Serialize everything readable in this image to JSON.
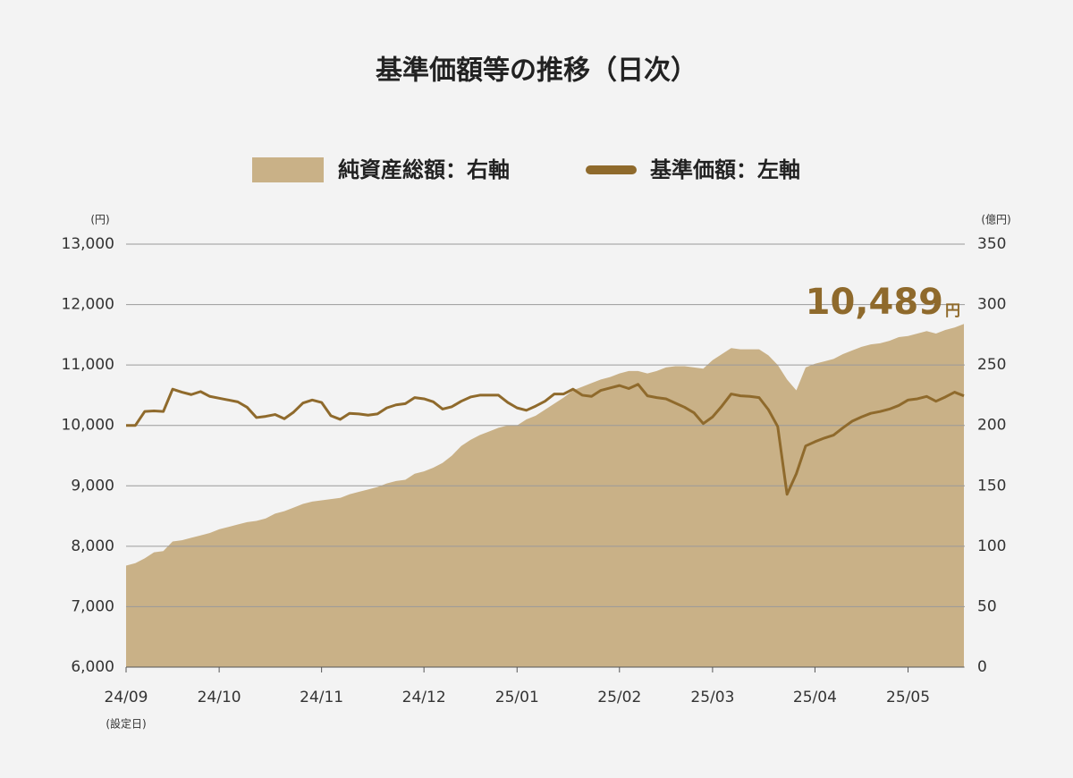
{
  "chart_data": {
    "type": "combo",
    "title": "基準価額等の推移（日次）",
    "y_unit": "(円)",
    "y2_unit": "(億円)",
    "x_annotation": "(設定日)",
    "categories": [
      "24/09",
      null,
      null,
      null,
      null,
      null,
      null,
      null,
      null,
      null,
      "24/10",
      null,
      null,
      null,
      null,
      null,
      null,
      null,
      null,
      null,
      null,
      "24/11",
      null,
      null,
      null,
      null,
      null,
      null,
      null,
      null,
      null,
      null,
      "24/12",
      null,
      null,
      null,
      null,
      null,
      null,
      null,
      null,
      null,
      "25/01",
      null,
      null,
      null,
      null,
      null,
      null,
      null,
      null,
      null,
      null,
      "25/02",
      null,
      null,
      null,
      null,
      null,
      null,
      null,
      null,
      null,
      "25/03",
      null,
      null,
      null,
      null,
      null,
      null,
      null,
      null,
      null,
      null,
      "25/04",
      null,
      null,
      null,
      null,
      null,
      null,
      null,
      null,
      null,
      "25/05",
      null,
      null,
      null,
      null,
      null,
      null
    ],
    "series": [
      {
        "name": "純資産総額：右軸",
        "type": "area",
        "axis": "y2",
        "color": "#c9b187",
        "values": [
          84,
          86,
          90,
          95,
          96,
          104,
          105,
          107,
          109,
          111,
          114,
          116,
          118,
          120,
          121,
          123,
          127,
          129,
          132,
          135,
          137,
          138,
          139,
          140,
          143,
          145,
          147,
          149,
          152,
          154,
          155,
          160,
          162,
          165,
          169,
          175,
          183,
          188,
          192,
          195,
          198,
          200,
          200,
          205,
          208,
          213,
          218,
          223,
          229,
          232,
          235,
          238,
          240,
          243,
          245,
          245,
          243,
          245,
          248,
          249,
          249,
          248,
          247,
          254,
          259,
          264,
          263,
          263,
          263,
          258,
          250,
          238,
          229,
          248,
          251,
          253,
          255,
          259,
          262,
          265,
          267,
          268,
          270,
          273,
          274,
          276,
          278,
          276,
          279,
          281,
          284
        ]
      },
      {
        "name": "基準価額：左軸",
        "type": "line",
        "color": "#8f6a2c",
        "values": [
          10000,
          10000,
          10230,
          10240,
          10230,
          10600,
          10550,
          10510,
          10560,
          10480,
          10450,
          10420,
          10390,
          10300,
          10130,
          10150,
          10180,
          10110,
          10220,
          10370,
          10420,
          10380,
          10160,
          10100,
          10200,
          10190,
          10170,
          10190,
          10290,
          10340,
          10360,
          10460,
          10440,
          10390,
          10270,
          10310,
          10400,
          10470,
          10500,
          10500,
          10500,
          10380,
          10290,
          10250,
          10320,
          10400,
          10520,
          10520,
          10600,
          10500,
          10480,
          10580,
          10620,
          10660,
          10610,
          10680,
          10490,
          10460,
          10440,
          10370,
          10300,
          10210,
          10030,
          10140,
          10320,
          10520,
          10490,
          10480,
          10460,
          10260,
          9980,
          8860,
          9200,
          9660,
          9730,
          9790,
          9840,
          9960,
          10070,
          10140,
          10200,
          10230,
          10270,
          10330,
          10420,
          10440,
          10480,
          10400,
          10470,
          10550,
          10489
        ],
        "value_labels": [
          null,
          null,
          null,
          null,
          null,
          null,
          null,
          null,
          null,
          null,
          null,
          null,
          null,
          null,
          null,
          null,
          null,
          null,
          null,
          null,
          null,
          null,
          null,
          null,
          null,
          null,
          null,
          null,
          null,
          null,
          null,
          null,
          null,
          null,
          null,
          null,
          null,
          null,
          null,
          null,
          null,
          null,
          null,
          null,
          null,
          null,
          null,
          null,
          null,
          null,
          null,
          null,
          null,
          null,
          null,
          null,
          null,
          null,
          null,
          null,
          null,
          null,
          null,
          null,
          null,
          null,
          null,
          null,
          null,
          null,
          null,
          null,
          null,
          null,
          null,
          null,
          null,
          null,
          null,
          null,
          null,
          null,
          null,
          null,
          null,
          null,
          null,
          null,
          null,
          null,
          "10,489"
        ],
        "value_label_unit": "円"
      }
    ],
    "ylim": [
      6000,
      13000
    ],
    "yticks": [
      {
        "value": 6000,
        "label": "6,000"
      },
      {
        "value": 7000,
        "label": "7,000"
      },
      {
        "value": 8000,
        "label": "8,000"
      },
      {
        "value": 9000,
        "label": "9,000"
      },
      {
        "value": 10000,
        "label": "10,000"
      },
      {
        "value": 11000,
        "label": "11,000"
      },
      {
        "value": 12000,
        "label": "12,000"
      },
      {
        "value": 13000,
        "label": "13,000"
      }
    ],
    "y2lim": [
      0,
      350
    ],
    "y2ticks": [
      0,
      50,
      100,
      150,
      200,
      250,
      300,
      350
    ],
    "grid": true
  }
}
